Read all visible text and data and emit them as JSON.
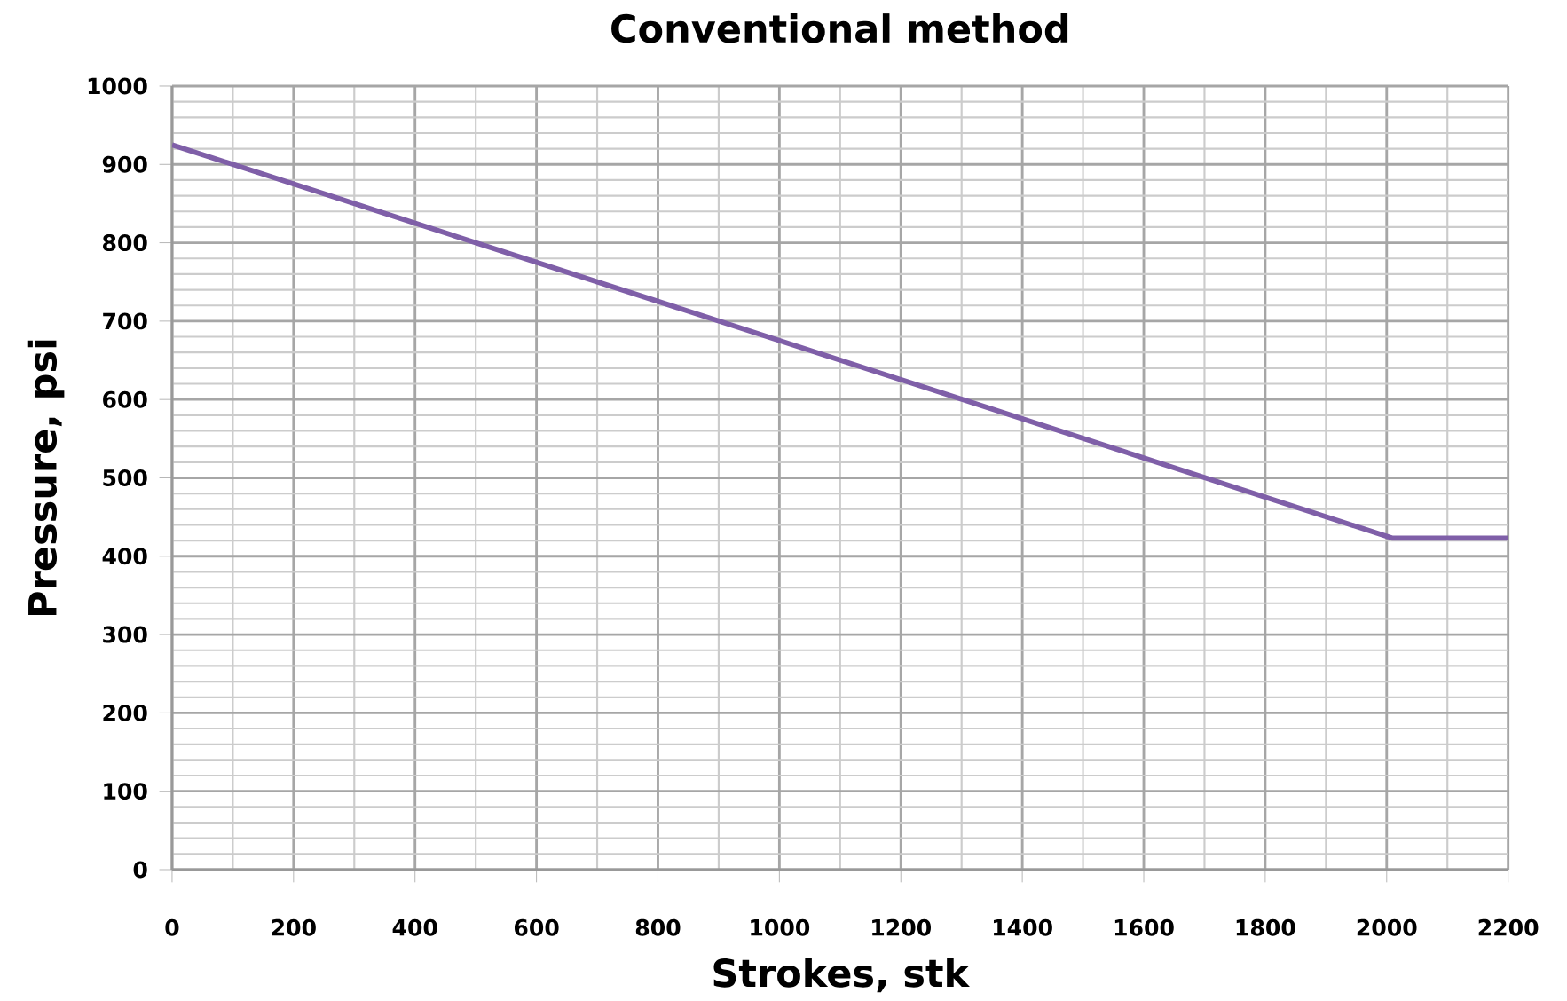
{
  "chart_data": {
    "type": "line",
    "title": "Conventional method",
    "xlabel": "Strokes, stk",
    "ylabel": "Pressure, psi",
    "x": [
      0,
      2010,
      2200
    ],
    "series": [
      {
        "color": "#7f5fa8",
        "values": [
          925,
          423,
          423
        ]
      }
    ],
    "xlim": [
      0,
      2200
    ],
    "ylim": [
      0,
      1000
    ],
    "xticks": [
      0,
      200,
      400,
      600,
      800,
      1000,
      1200,
      1400,
      1600,
      1800,
      2000,
      2200
    ],
    "yticks": [
      0,
      100,
      200,
      300,
      400,
      500,
      600,
      700,
      800,
      900,
      1000
    ],
    "grid": true,
    "marker": "none",
    "line_style": "solid"
  }
}
